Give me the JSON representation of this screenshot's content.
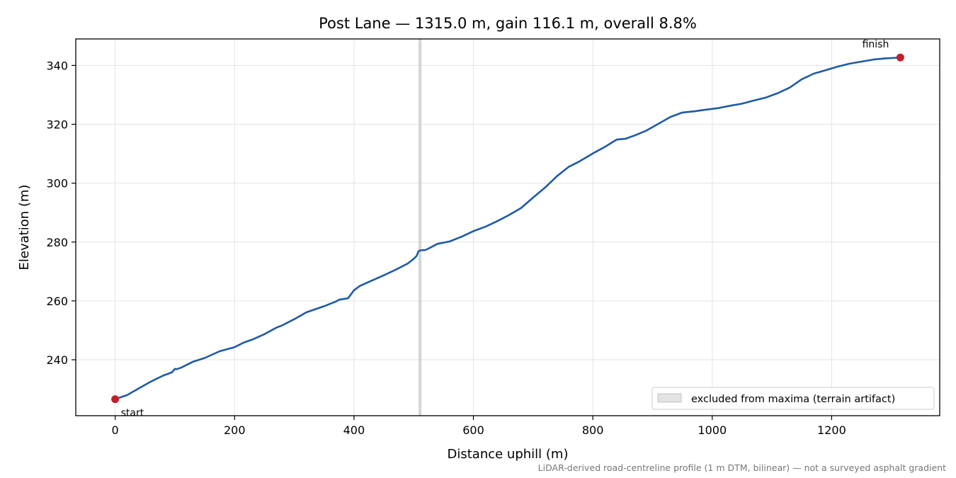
{
  "chart_data": {
    "type": "line",
    "title": "Post Lane — 1315.0 m, gain 116.1 m, overall 8.8%",
    "xlabel": "Distance uphill (m)",
    "ylabel": "Elevation (m)",
    "xlim": [
      -66,
      1381
    ],
    "ylim": [
      221,
      349
    ],
    "xticks": [
      0,
      200,
      400,
      600,
      800,
      1000,
      1200
    ],
    "yticks": [
      240,
      260,
      280,
      300,
      320,
      340
    ],
    "grid": true,
    "legend_position": "lower-right",
    "series": [
      {
        "color": "#1f5aa6",
        "x": [
          0,
          20,
          40,
          60,
          80,
          95,
          100,
          103,
          110,
          130,
          150,
          175,
          200,
          215,
          230,
          250,
          270,
          280,
          300,
          320,
          350,
          370,
          375,
          390,
          400,
          410,
          430,
          450,
          470,
          490,
          500,
          505,
          508,
          512,
          520,
          540,
          560,
          580,
          600,
          620,
          640,
          660,
          680,
          700,
          720,
          740,
          760,
          775,
          800,
          820,
          840,
          855,
          870,
          890,
          910,
          930,
          950,
          970,
          990,
          1010,
          1030,
          1050,
          1070,
          1090,
          1110,
          1130,
          1150,
          1170,
          1190,
          1210,
          1230,
          1250,
          1270,
          1290,
          1300,
          1315
        ],
        "y": [
          226.6,
          228,
          230.3,
          232.6,
          234.6,
          235.7,
          236.9,
          236.8,
          237.3,
          239.3,
          240.6,
          242.9,
          244.3,
          245.8,
          246.9,
          248.7,
          250.9,
          251.7,
          253.8,
          256.1,
          258.2,
          259.8,
          260.4,
          260.9,
          263.6,
          265.1,
          266.9,
          268.7,
          270.6,
          272.7,
          274.3,
          275.3,
          276.9,
          277.2,
          277.3,
          279.4,
          280.2,
          281.8,
          283.7,
          285.2,
          287.1,
          289.2,
          291.6,
          295.1,
          298.5,
          302.4,
          305.6,
          307.1,
          310.1,
          312.3,
          314.8,
          315.1,
          316.2,
          317.9,
          320.2,
          322.5,
          324,
          324.4,
          325,
          325.5,
          326.3,
          327,
          328.1,
          329.1,
          330.6,
          332.5,
          335.3,
          337.2,
          338.4,
          339.6,
          340.6,
          341.3,
          342,
          342.4,
          342.5,
          342.7
        ]
      }
    ],
    "markers": [
      {
        "x": 0,
        "y": 226.6,
        "label": "start",
        "color": "#c0202a"
      },
      {
        "x": 1315,
        "y": 342.7,
        "label": "finish",
        "color": "#c0202a"
      }
    ],
    "excluded_band": {
      "x": [
        508,
        513
      ],
      "color": "#c8c8c8",
      "legend_label": "excluded from maxima (terrain artifact)"
    },
    "caption": "LiDAR-derived road-centreline profile (1 m DTM, bilinear) — not a surveyed asphalt gradient"
  }
}
